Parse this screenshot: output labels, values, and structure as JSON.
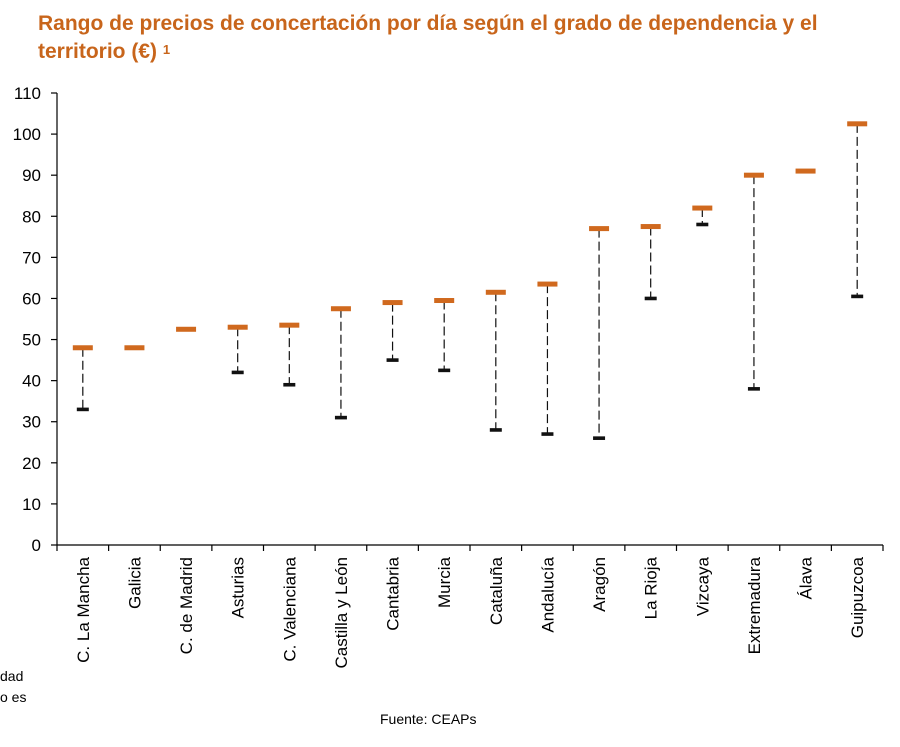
{
  "title": "Rango de precios de concertación por día según el grado de dependencia y el territorio (€)",
  "title_sup": "1",
  "source": "Fuente: CEAPs",
  "cut_notes": [
    "dad",
    "o es"
  ],
  "colors": {
    "max_marker": "#D0691E",
    "min_marker": "#111111",
    "range_line": "#111111",
    "title": "#C8651B"
  },
  "chart_data": {
    "type": "range",
    "title": "Rango de precios de concertación por día según el grado de dependencia y el territorio (€)",
    "xlabel": "",
    "ylabel": "",
    "ylim": [
      0,
      110
    ],
    "yticks": [
      0,
      10,
      20,
      30,
      40,
      50,
      60,
      70,
      80,
      90,
      100,
      110
    ],
    "grid": false,
    "categories": [
      "C. La Mancha",
      "Galicia",
      "C. de Madrid",
      "Asturias",
      "C. Valenciana",
      "Castilla y León",
      "Cantabria",
      "Murcia",
      "Cataluña",
      "Andalucía",
      "Aragón",
      "La Rioja",
      "Vizcaya",
      "Extremadura",
      "Álava",
      "Guipuzcoa"
    ],
    "series": [
      {
        "values": [
          48,
          48,
          52.5,
          53,
          53.5,
          57.5,
          59,
          59.5,
          61.5,
          63.5,
          77,
          77.5,
          82,
          90,
          91,
          102.5
        ]
      },
      {
        "values": [
          33,
          null,
          null,
          42,
          39,
          31,
          45,
          42.5,
          28,
          27,
          26,
          60,
          78,
          38,
          null,
          60.5
        ]
      }
    ]
  }
}
